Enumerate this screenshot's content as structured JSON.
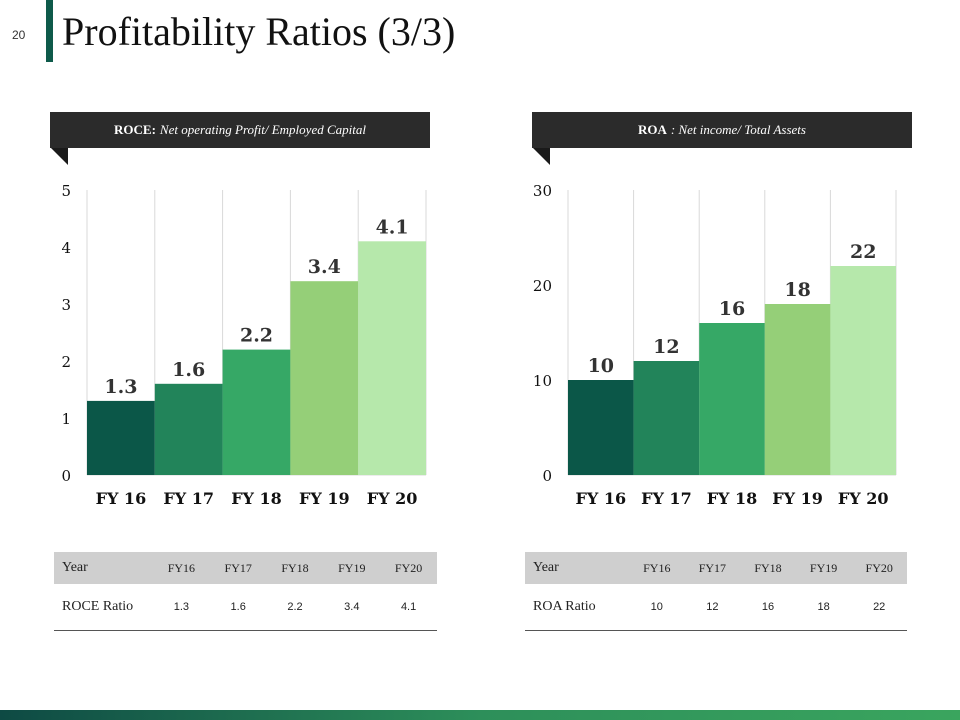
{
  "slide": {
    "number": "20",
    "title": "Profitability Ratios (3/3)"
  },
  "banners": [
    {
      "bold": "ROCE:",
      "italic": "Net operating Profit/ Employed Capital"
    },
    {
      "bold": "ROA",
      "italic": ": Net income/ Total Assets"
    }
  ],
  "colors": [
    "#0b5748",
    "#22845a",
    "#36a866",
    "#95cf78",
    "#b6e8ab"
  ],
  "chart_data": [
    {
      "type": "bar",
      "title": "ROCE",
      "categories": [
        "FY 16",
        "FY 17",
        "FY 18",
        "FY 19",
        "FY 20"
      ],
      "values": [
        1.3,
        1.6,
        2.2,
        3.4,
        4.1
      ],
      "value_labels": [
        "1.3",
        "1.6",
        "2.2",
        "3.4",
        "4.1"
      ],
      "yticks": [
        "0",
        "1",
        "2",
        "3",
        "4",
        "5"
      ],
      "ylim": [
        0,
        5
      ],
      "tick_step": 1
    },
    {
      "type": "bar",
      "title": "ROA",
      "categories": [
        "FY 16",
        "FY 17",
        "FY 18",
        "FY 19",
        "FY 20"
      ],
      "values": [
        10,
        12,
        16,
        18,
        22
      ],
      "value_labels": [
        "10",
        "12",
        "16",
        "18",
        "22"
      ],
      "yticks": [
        "0",
        "10",
        "20",
        "30"
      ],
      "ylim": [
        0,
        30
      ],
      "tick_step": 10
    }
  ],
  "tables": [
    {
      "header": [
        "Year",
        "FY16",
        "FY17",
        "FY18",
        "FY19",
        "FY20"
      ],
      "row": [
        "ROCE Ratio",
        "1.3",
        "1.6",
        "2.2",
        "3.4",
        "4.1"
      ]
    },
    {
      "header": [
        "Year",
        "FY16",
        "FY17",
        "FY18",
        "FY19",
        "FY20"
      ],
      "row": [
        "ROA Ratio",
        "10",
        "12",
        "16",
        "18",
        "22"
      ]
    }
  ]
}
